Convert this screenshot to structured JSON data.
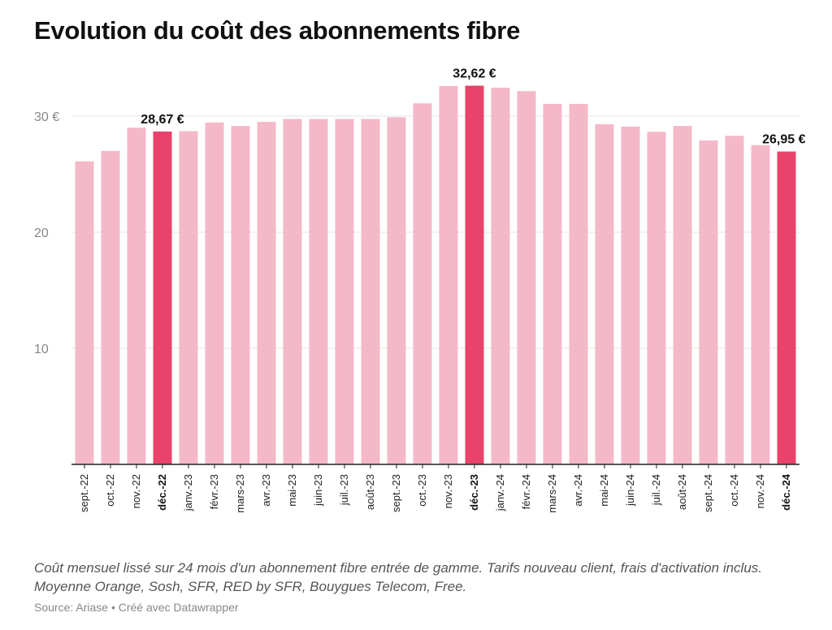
{
  "title": "Evolution du coût des abonnements fibre",
  "caption": "Coût mensuel lissé sur 24 mois d'un abonnement fibre entrée de gamme. Tarifs nouveau client, frais d'activation inclus. Moyenne Orange, Sosh, SFR, RED by SFR, Bouygues Telecom, Free.",
  "source": "Source: Ariase • Créé avec Datawrapper",
  "colors": {
    "bar": "#f5b8c8",
    "highlight": "#e8436a",
    "grid": "#e3e3e3",
    "axis": "#222222"
  },
  "chart_data": {
    "type": "bar",
    "title": "Evolution du coût des abonnements fibre",
    "xlabel": "",
    "ylabel": "",
    "ylim": [
      0,
      33.5
    ],
    "yticks": [
      10,
      20,
      30
    ],
    "ytick_labels": [
      "10",
      "20",
      "30 €"
    ],
    "grid": true,
    "categories": [
      "sept.-22",
      "oct.-22",
      "nov.-22",
      "déc.-22",
      "janv.-23",
      "févr.-23",
      "mars-23",
      "avr.-23",
      "mai-23",
      "juin-23",
      "juil.-23",
      "août-23",
      "sept.-23",
      "oct.-23",
      "nov.-23",
      "déc.-23",
      "janv.-24",
      "févr.-24",
      "mars-24",
      "avr.-24",
      "mai-24",
      "juin-24",
      "juil.-24",
      "août-24",
      "sept.-24",
      "oct.-24",
      "nov.-24",
      "déc.-24"
    ],
    "values": [
      26.1,
      27.0,
      29.0,
      28.67,
      28.7,
      29.45,
      29.15,
      29.5,
      29.75,
      29.75,
      29.75,
      29.75,
      29.9,
      31.1,
      32.6,
      32.62,
      32.45,
      32.15,
      31.05,
      31.05,
      29.3,
      29.1,
      28.65,
      29.15,
      27.9,
      28.3,
      27.5,
      26.95
    ],
    "highlighted": [
      "déc.-22",
      "déc.-23",
      "déc.-24"
    ],
    "annotations": [
      {
        "category": "déc.-22",
        "text": "28,67 €"
      },
      {
        "category": "déc.-23",
        "text": "32,62 €"
      },
      {
        "category": "déc.-24",
        "text": "26,95 €"
      }
    ]
  }
}
